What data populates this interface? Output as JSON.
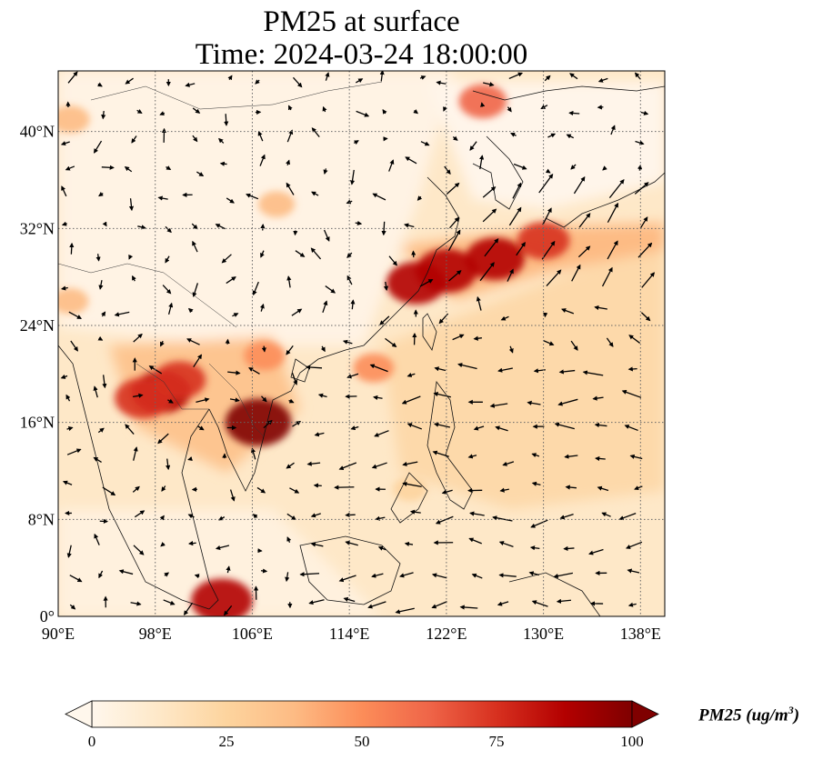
{
  "title": "PM25 at surface",
  "subtitle": "Time: 2024-03-24 18:00:00",
  "map": {
    "lon_range": [
      90,
      140
    ],
    "lat_range": [
      0,
      45
    ],
    "x_ticks": [
      {
        "value": 90,
        "label": "90°E"
      },
      {
        "value": 98,
        "label": "98°E"
      },
      {
        "value": 106,
        "label": "106°E"
      },
      {
        "value": 114,
        "label": "114°E"
      },
      {
        "value": 122,
        "label": "122°E"
      },
      {
        "value": 130,
        "label": "130°E"
      },
      {
        "value": 138,
        "label": "138°E"
      }
    ],
    "y_ticks": [
      {
        "value": 0,
        "label": "0°"
      },
      {
        "value": 8,
        "label": "8°N"
      },
      {
        "value": 16,
        "label": "16°N"
      },
      {
        "value": 24,
        "label": "24°N"
      },
      {
        "value": 32,
        "label": "32°N"
      },
      {
        "value": 40,
        "label": "40°N"
      }
    ],
    "gridlines": "dotted",
    "colormap": "OrRd",
    "hotspots": [
      {
        "lon": 106.5,
        "lat": 16.0,
        "pm25": 100
      },
      {
        "lon": 98.5,
        "lat": 18.5,
        "pm25": 85
      },
      {
        "lon": 97,
        "lat": 18,
        "pm25": 80
      },
      {
        "lon": 100,
        "lat": 19.5,
        "pm25": 70
      },
      {
        "lon": 103.5,
        "lat": 1.3,
        "pm25": 90
      },
      {
        "lon": 119.5,
        "lat": 27.5,
        "pm25": 85
      },
      {
        "lon": 122,
        "lat": 28.5,
        "pm25": 90
      },
      {
        "lon": 126,
        "lat": 29.5,
        "pm25": 85
      },
      {
        "lon": 130,
        "lat": 31,
        "pm25": 70
      },
      {
        "lon": 116,
        "lat": 20.5,
        "pm25": 45
      },
      {
        "lon": 107,
        "lat": 21.5,
        "pm25": 45
      },
      {
        "lon": 125,
        "lat": 42.5,
        "pm25": 60
      },
      {
        "lon": 108,
        "lat": 34,
        "pm25": 35
      },
      {
        "lon": 91,
        "lat": 41,
        "pm25": 40
      },
      {
        "lon": 119,
        "lat": 10.5,
        "pm25": 30
      },
      {
        "lon": 91,
        "lat": 26,
        "pm25": 35
      }
    ]
  },
  "colorbar": {
    "min": 0,
    "max": 100,
    "ticks": [
      "0",
      "25",
      "50",
      "75",
      "100"
    ],
    "extend": "both",
    "colors": [
      "#fff7ec",
      "#fee8c8",
      "#fdd49e",
      "#fdbb84",
      "#fc8d59",
      "#ef6548",
      "#d7301f",
      "#b30000",
      "#7f0000"
    ],
    "label": "PM25 (ug/m",
    "label_sup": "3",
    "label_close": ")"
  },
  "wind_vectors": "present"
}
